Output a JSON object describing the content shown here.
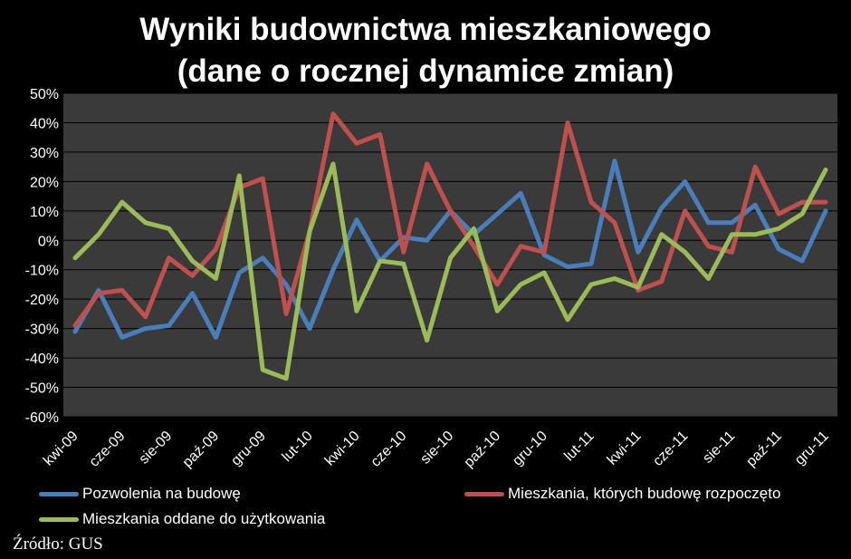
{
  "chart_data": {
    "type": "line",
    "title_line1": "Wyniki budownictwa mieszkaniowego",
    "title_line2": "(dane o rocznej dynamice zmian)",
    "ylim": [
      -60,
      50
    ],
    "y_ticks": [
      "50%",
      "40%",
      "30%",
      "20%",
      "10%",
      "0%",
      "-10%",
      "-20%",
      "-30%",
      "-40%",
      "-50%",
      "-60%"
    ],
    "y_tick_values": [
      50,
      40,
      30,
      20,
      10,
      0,
      -10,
      -20,
      -30,
      -40,
      -50,
      -60
    ],
    "categories": [
      "kwi-09",
      "maj-09",
      "cze-09",
      "lip-09",
      "sie-09",
      "wrz-09",
      "paź-09",
      "lis-09",
      "gru-09",
      "sty-10",
      "lut-10",
      "mar-10",
      "kwi-10",
      "maj-10",
      "cze-10",
      "lip-10",
      "sie-10",
      "wrz-10",
      "paź-10",
      "lis-10",
      "gru-10",
      "sty-11",
      "lut-11",
      "mar-11",
      "kwi-11",
      "maj-11",
      "cze-11",
      "lip-11",
      "sie-11",
      "wrz-11",
      "paź-11",
      "lis-11",
      "gru-11"
    ],
    "x_tick_labels": [
      "kwi-09",
      "cze-09",
      "sie-09",
      "paź-09",
      "gru-09",
      "lut-10",
      "kwi-10",
      "cze-10",
      "sie-10",
      "paź-10",
      "gru-10",
      "lut-11",
      "kwi-11",
      "cze-11",
      "sie-11",
      "paź-11",
      "gru-11"
    ],
    "grid": true,
    "plot_background": "#3a3a3a",
    "series": [
      {
        "name": "Pozwolenia na budowę",
        "color": "#4a7ebb",
        "values": [
          -31,
          -17,
          -33,
          -30,
          -29,
          -18,
          -33,
          -11,
          -6,
          -15,
          -30,
          -10,
          7,
          -7,
          1,
          0,
          10,
          2,
          9,
          16,
          -5,
          -9,
          -8,
          27,
          -4,
          11,
          20,
          6,
          6,
          12,
          -3,
          -7,
          10
        ]
      },
      {
        "name": "Mieszkania, których budowę rozpoczęto",
        "color": "#c0504d",
        "values": [
          -29,
          -18,
          -17,
          -26,
          -6,
          -12,
          -3,
          18,
          21,
          -25,
          3,
          43,
          33,
          36,
          -4,
          26,
          10,
          -2,
          -15,
          -2,
          -4,
          40,
          13,
          6,
          -17,
          -14,
          10,
          -2,
          -4,
          25,
          9,
          13,
          13
        ]
      },
      {
        "name": "Mieszkania oddane do użytkowania",
        "color": "#9bbb59",
        "values": [
          -6,
          2,
          13,
          6,
          4,
          -7,
          -13,
          22,
          -44,
          -47,
          3,
          26,
          -24,
          -7,
          -8,
          -34,
          -6,
          4,
          -24,
          -15,
          -11,
          -27,
          -15,
          -13,
          -16,
          2,
          -4,
          -13,
          2,
          2,
          4,
          9,
          24
        ]
      }
    ]
  },
  "legend": [
    {
      "label": "Pozwolenia na budowę",
      "color": "#4a7ebb"
    },
    {
      "label": "Mieszkania, których budowę rozpoczęto",
      "color": "#c0504d"
    },
    {
      "label": "Mieszkania oddane do użytkowania",
      "color": "#9bbb59"
    }
  ],
  "source": "Źródło: GUS"
}
